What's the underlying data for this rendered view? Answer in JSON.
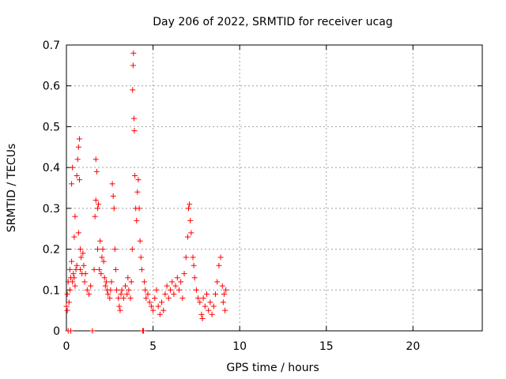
{
  "chart_data": {
    "type": "scatter",
    "title": "Day 206 of 2022, SRMTID for receiver ucag",
    "xlabel": "GPS time / hours",
    "ylabel": "SRMTID / TECUs",
    "xlim": [
      0,
      24
    ],
    "ylim": [
      0,
      0.7
    ],
    "x_ticks": [
      0,
      5,
      10,
      15,
      20
    ],
    "y_ticks": [
      0,
      0.1,
      0.2,
      0.3,
      0.4,
      0.5,
      0.6,
      0.7
    ],
    "x_tick_labels": [
      "0",
      "5",
      "10",
      "15",
      "20"
    ],
    "y_tick_labels": [
      "0",
      "0.1",
      "0.2",
      "0.3",
      "0.4",
      "0.5",
      "0.6",
      "0.7"
    ],
    "grid": true,
    "marker": "+",
    "marker_color": "#ff0000",
    "series": [
      {
        "points": [
          [
            0.0,
            0.06
          ],
          [
            0.05,
            0.09
          ],
          [
            0.05,
            0.05
          ],
          [
            0.1,
            0.12
          ],
          [
            0.1,
            0.0
          ],
          [
            0.15,
            0.07
          ],
          [
            0.2,
            0.15
          ],
          [
            0.2,
            0.1
          ],
          [
            0.25,
            0.13
          ],
          [
            0.25,
            0.0
          ],
          [
            0.3,
            0.17
          ],
          [
            0.3,
            0.36
          ],
          [
            0.35,
            0.4
          ],
          [
            0.35,
            0.12
          ],
          [
            0.4,
            0.14
          ],
          [
            0.45,
            0.13
          ],
          [
            0.45,
            0.23
          ],
          [
            0.5,
            0.28
          ],
          [
            0.5,
            0.11
          ],
          [
            0.55,
            0.15
          ],
          [
            0.6,
            0.38
          ],
          [
            0.6,
            0.16
          ],
          [
            0.65,
            0.42
          ],
          [
            0.7,
            0.45
          ],
          [
            0.7,
            0.24
          ],
          [
            0.75,
            0.47
          ],
          [
            0.75,
            0.37
          ],
          [
            0.8,
            0.2
          ],
          [
            0.8,
            0.15
          ],
          [
            0.85,
            0.18
          ],
          [
            0.9,
            0.14
          ],
          [
            0.95,
            0.19
          ],
          [
            1.0,
            0.16
          ],
          [
            1.05,
            0.12
          ],
          [
            1.1,
            0.14
          ],
          [
            1.2,
            0.1
          ],
          [
            1.3,
            0.09
          ],
          [
            1.4,
            0.11
          ],
          [
            1.5,
            0.0
          ],
          [
            1.6,
            0.15
          ],
          [
            1.65,
            0.28
          ],
          [
            1.7,
            0.42
          ],
          [
            1.7,
            0.32
          ],
          [
            1.75,
            0.39
          ],
          [
            1.8,
            0.3
          ],
          [
            1.8,
            0.2
          ],
          [
            1.85,
            0.31
          ],
          [
            1.9,
            0.15
          ],
          [
            1.95,
            0.22
          ],
          [
            2.0,
            0.14
          ],
          [
            2.05,
            0.18
          ],
          [
            2.1,
            0.2
          ],
          [
            2.15,
            0.17
          ],
          [
            2.2,
            0.13
          ],
          [
            2.25,
            0.11
          ],
          [
            2.3,
            0.12
          ],
          [
            2.35,
            0.1
          ],
          [
            2.4,
            0.09
          ],
          [
            2.5,
            0.08
          ],
          [
            2.55,
            0.1
          ],
          [
            2.6,
            0.12
          ],
          [
            2.65,
            0.36
          ],
          [
            2.7,
            0.33
          ],
          [
            2.75,
            0.3
          ],
          [
            2.8,
            0.2
          ],
          [
            2.85,
            0.15
          ],
          [
            2.9,
            0.1
          ],
          [
            3.0,
            0.08
          ],
          [
            3.05,
            0.06
          ],
          [
            3.1,
            0.05
          ],
          [
            3.15,
            0.09
          ],
          [
            3.2,
            0.1
          ],
          [
            3.3,
            0.08
          ],
          [
            3.4,
            0.11
          ],
          [
            3.5,
            0.09
          ],
          [
            3.55,
            0.13
          ],
          [
            3.6,
            0.1
          ],
          [
            3.7,
            0.08
          ],
          [
            3.75,
            0.12
          ],
          [
            3.8,
            0.2
          ],
          [
            3.82,
            0.59
          ],
          [
            3.85,
            0.65
          ],
          [
            3.87,
            0.68
          ],
          [
            3.9,
            0.52
          ],
          [
            3.92,
            0.49
          ],
          [
            3.95,
            0.38
          ],
          [
            4.0,
            0.3
          ],
          [
            4.05,
            0.27
          ],
          [
            4.1,
            0.34
          ],
          [
            4.15,
            0.37
          ],
          [
            4.2,
            0.3
          ],
          [
            4.25,
            0.22
          ],
          [
            4.3,
            0.18
          ],
          [
            4.35,
            0.15
          ],
          [
            4.4,
            0.0
          ],
          [
            4.45,
            0.0
          ],
          [
            4.5,
            0.12
          ],
          [
            4.55,
            0.1
          ],
          [
            4.6,
            0.08
          ],
          [
            4.7,
            0.09
          ],
          [
            4.8,
            0.07
          ],
          [
            4.9,
            0.06
          ],
          [
            5.0,
            0.05
          ],
          [
            5.1,
            0.08
          ],
          [
            5.2,
            0.1
          ],
          [
            5.3,
            0.06
          ],
          [
            5.4,
            0.04
          ],
          [
            5.5,
            0.07
          ],
          [
            5.6,
            0.05
          ],
          [
            5.7,
            0.09
          ],
          [
            5.8,
            0.11
          ],
          [
            5.9,
            0.08
          ],
          [
            6.0,
            0.1
          ],
          [
            6.1,
            0.12
          ],
          [
            6.2,
            0.09
          ],
          [
            6.3,
            0.11
          ],
          [
            6.4,
            0.13
          ],
          [
            6.5,
            0.1
          ],
          [
            6.6,
            0.12
          ],
          [
            6.7,
            0.08
          ],
          [
            6.8,
            0.14
          ],
          [
            6.9,
            0.18
          ],
          [
            7.0,
            0.23
          ],
          [
            7.05,
            0.3
          ],
          [
            7.1,
            0.31
          ],
          [
            7.15,
            0.27
          ],
          [
            7.2,
            0.24
          ],
          [
            7.3,
            0.18
          ],
          [
            7.35,
            0.16
          ],
          [
            7.4,
            0.13
          ],
          [
            7.5,
            0.1
          ],
          [
            7.6,
            0.08
          ],
          [
            7.7,
            0.07
          ],
          [
            7.8,
            0.04
          ],
          [
            7.85,
            0.03
          ],
          [
            7.9,
            0.08
          ],
          [
            8.0,
            0.06
          ],
          [
            8.1,
            0.09
          ],
          [
            8.2,
            0.05
          ],
          [
            8.3,
            0.07
          ],
          [
            8.4,
            0.04
          ],
          [
            8.5,
            0.06
          ],
          [
            8.6,
            0.09
          ],
          [
            8.7,
            0.12
          ],
          [
            8.8,
            0.16
          ],
          [
            8.9,
            0.18
          ],
          [
            9.0,
            0.11
          ],
          [
            9.05,
            0.07
          ],
          [
            9.1,
            0.09
          ],
          [
            9.15,
            0.05
          ],
          [
            9.2,
            0.1
          ]
        ]
      }
    ]
  }
}
